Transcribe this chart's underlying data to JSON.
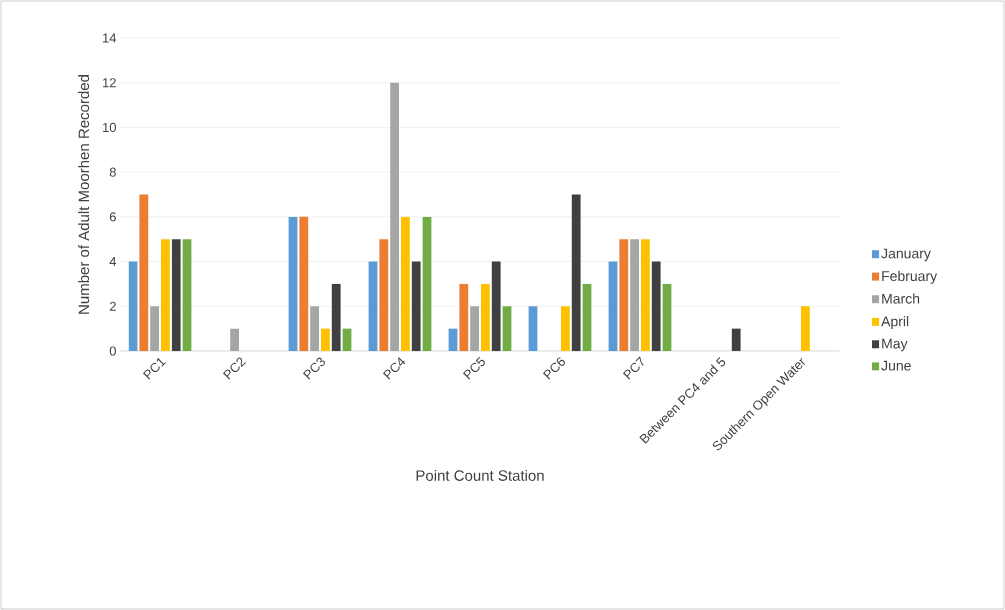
{
  "chart_data": {
    "type": "bar",
    "xlabel": "Point Count Station",
    "ylabel": "Number of Adult Moorhen Recorded",
    "categories": [
      "PC1",
      "PC2",
      "PC3",
      "PC4",
      "PC5",
      "PC6",
      "PC7",
      "Between PC4 and 5",
      "Southern Open Water"
    ],
    "series": [
      {
        "name": "January",
        "color": "#5b9bd5",
        "values": [
          4,
          0,
          6,
          4,
          1,
          2,
          4,
          0,
          0
        ]
      },
      {
        "name": "February",
        "color": "#ed7d31",
        "values": [
          7,
          0,
          6,
          5,
          3,
          0,
          5,
          0,
          0
        ]
      },
      {
        "name": "March",
        "color": "#a5a5a5",
        "values": [
          2,
          1,
          2,
          12,
          2,
          0,
          5,
          0,
          0
        ]
      },
      {
        "name": "April",
        "color": "#ffc000",
        "values": [
          5,
          0,
          1,
          6,
          3,
          2,
          5,
          0,
          2
        ]
      },
      {
        "name": "May",
        "color": "#404040",
        "values": [
          5,
          0,
          3,
          4,
          4,
          7,
          4,
          1,
          0
        ]
      },
      {
        "name": "June",
        "color": "#70ad47",
        "values": [
          5,
          0,
          1,
          6,
          2,
          3,
          3,
          0,
          0
        ]
      }
    ],
    "ylim": [
      0,
      14
    ],
    "yticks": [
      0,
      2,
      4,
      6,
      8,
      10,
      12,
      14
    ],
    "grid": "y",
    "legend": "right"
  }
}
